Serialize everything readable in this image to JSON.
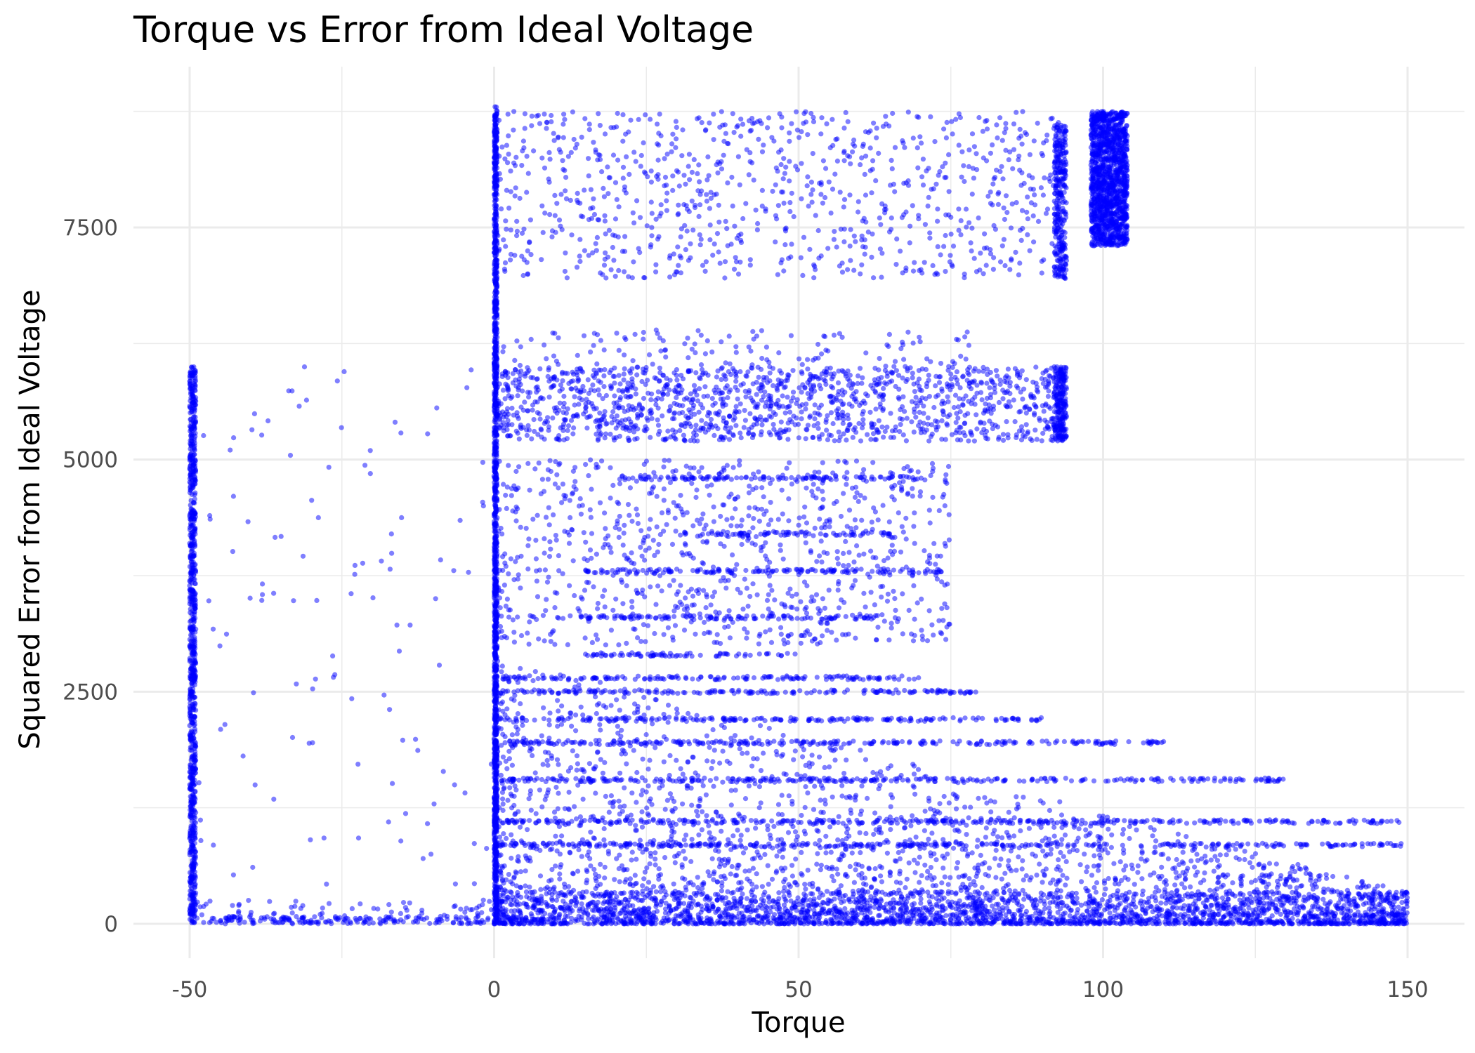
{
  "chart_data": {
    "type": "scatter",
    "title": "Torque vs Error from Ideal Voltage",
    "xlabel": "Torque",
    "ylabel": "Squared Error from Ideal Voltage",
    "xlim": [
      -50,
      150
    ],
    "ylim": [
      0,
      8800
    ],
    "x_ticks": [
      -50,
      0,
      50,
      100,
      150
    ],
    "x_tick_labels": [
      "-50",
      "0",
      "50",
      "100",
      "150"
    ],
    "y_ticks": [
      0,
      2500,
      5000,
      7500
    ],
    "y_tick_labels": [
      "0",
      "2500",
      "5000",
      "7500"
    ],
    "grid": true,
    "legend": "none",
    "point_color": "#0000ff",
    "point_opacity": 0.5,
    "regions": [
      {
        "name": "upper-band",
        "x_range": [
          0,
          94
        ],
        "y_range": [
          6950,
          8750
        ],
        "density": "medium"
      },
      {
        "name": "upper-right-extension",
        "x_range": [
          98,
          104
        ],
        "y_range": [
          7300,
          8750
        ],
        "density": "dense"
      },
      {
        "name": "middle-band",
        "x_range": [
          0,
          94
        ],
        "y_range": [
          5200,
          6000
        ],
        "density": "dense"
      },
      {
        "name": "middle-band-sparse-top",
        "x_range": [
          0,
          80
        ],
        "y_range": [
          6000,
          6400
        ],
        "density": "sparse"
      },
      {
        "name": "mid-streaks",
        "x_range": [
          0,
          75
        ],
        "y_range": [
          3000,
          5000
        ],
        "density": "medium"
      },
      {
        "name": "lower-wedge",
        "x_range": [
          0,
          150
        ],
        "y_range": [
          0,
          2900
        ],
        "density": "very-dense-near-zero"
      },
      {
        "name": "negative-torque-column",
        "x_range": [
          -50,
          -49
        ],
        "y_range": [
          0,
          6000
        ],
        "density": "medium"
      },
      {
        "name": "negative-torque-sparse",
        "x_range": [
          -49,
          0
        ],
        "y_range": [
          0,
          6000
        ],
        "density": "sparse"
      },
      {
        "name": "zero-torque-column",
        "x_range": [
          0,
          0.5
        ],
        "y_range": [
          0,
          8800
        ],
        "density": "dense"
      }
    ],
    "horizontal_streaks": [
      {
        "y": 2900,
        "x_range": [
          15,
          50
        ]
      },
      {
        "y": 2650,
        "x_range": [
          0,
          70
        ]
      },
      {
        "y": 2500,
        "x_range": [
          0,
          80
        ]
      },
      {
        "y": 2200,
        "x_range": [
          0,
          90
        ]
      },
      {
        "y": 1950,
        "x_range": [
          0,
          110
        ]
      },
      {
        "y": 1550,
        "x_range": [
          0,
          130
        ]
      },
      {
        "y": 1100,
        "x_range": [
          0,
          149
        ]
      },
      {
        "y": 850,
        "x_range": [
          0,
          149
        ]
      },
      {
        "y": 3800,
        "x_range": [
          15,
          75
        ]
      },
      {
        "y": 4200,
        "x_range": [
          30,
          65
        ]
      },
      {
        "y": 4800,
        "x_range": [
          20,
          72
        ]
      },
      {
        "y": 3300,
        "x_range": [
          10,
          63
        ]
      }
    ]
  }
}
